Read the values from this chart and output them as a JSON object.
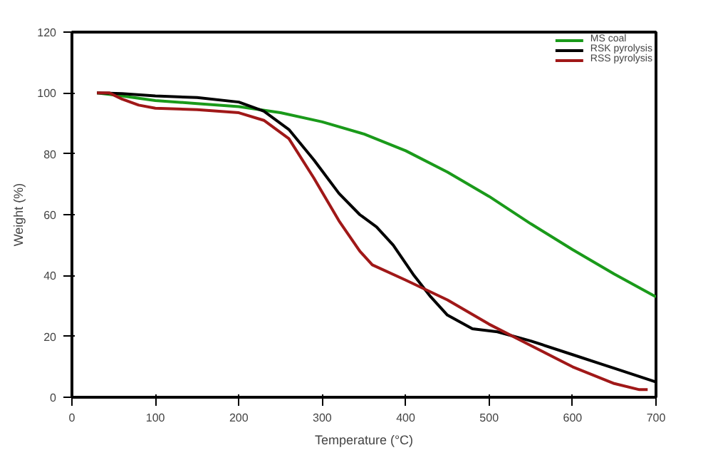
{
  "chart_data": {
    "type": "line",
    "xlabel": "Temperature (°C)",
    "ylabel": "Weight (%)",
    "xlim": [
      0,
      700
    ],
    "xticks": [
      0,
      100,
      200,
      300,
      400,
      500,
      600,
      700
    ],
    "ylim": [
      0,
      120
    ],
    "yticks": [
      0,
      20,
      40,
      60,
      80,
      100,
      120
    ],
    "grid": false,
    "legend": "top right",
    "line_style": "solid",
    "marker": "none",
    "series": [
      {
        "name": "MS coal",
        "color": "#1a9a1a",
        "x": [
          30,
          60,
          100,
          150,
          200,
          250,
          300,
          350,
          400,
          450,
          500,
          550,
          600,
          650,
          700
        ],
        "values": [
          100,
          99,
          97.5,
          96.5,
          95.5,
          93.5,
          90.5,
          86.5,
          81,
          74,
          66,
          57,
          48.5,
          40.5,
          33
        ]
      },
      {
        "name": "RSK pyrolysis",
        "color": "#000000",
        "x": [
          30,
          60,
          100,
          150,
          200,
          230,
          260,
          290,
          320,
          345,
          365,
          385,
          410,
          430,
          450,
          480,
          510,
          550,
          600,
          650,
          700
        ],
        "values": [
          100,
          99.8,
          99,
          98.5,
          97,
          94,
          88,
          78,
          67,
          60,
          56,
          50,
          40,
          33,
          27,
          22.5,
          21.5,
          18.5,
          14,
          9.5,
          5
        ]
      },
      {
        "name": "RSS pyrolysis",
        "color": "#a01818",
        "x": [
          30,
          45,
          60,
          80,
          100,
          150,
          200,
          230,
          260,
          290,
          320,
          345,
          360,
          400,
          450,
          500,
          550,
          600,
          650,
          680,
          690
        ],
        "values": [
          100,
          100,
          98,
          96,
          95,
          94.5,
          93.5,
          91,
          85,
          72,
          58,
          48,
          43.5,
          38.5,
          32,
          24,
          17,
          10,
          4.5,
          2.5,
          2.5
        ]
      }
    ]
  }
}
